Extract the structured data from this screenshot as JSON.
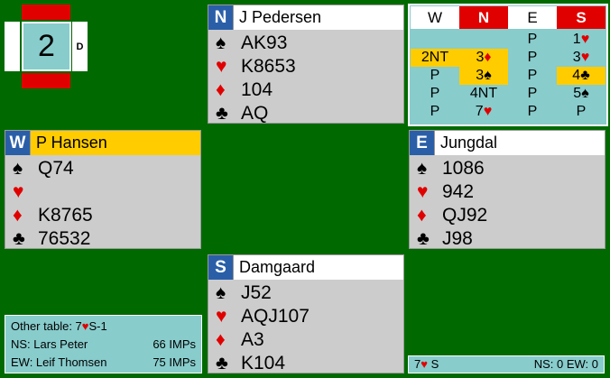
{
  "board": {
    "number": "2",
    "dealer_mark": "D",
    "vul_colors": {
      "ns": "#e00000",
      "ew": "#ffffff"
    }
  },
  "hands": {
    "north": {
      "seat": "N",
      "name": "J Pedersen",
      "spades": "AK93",
      "hearts": "K8653",
      "diamonds": "104",
      "clubs": "AQ"
    },
    "west": {
      "seat": "W",
      "name": "P Hansen",
      "spades": "Q74",
      "hearts": "",
      "diamonds": "K8765",
      "clubs": "76532"
    },
    "east": {
      "seat": "E",
      "name": "Jungdal",
      "spades": "1086",
      "hearts": "942",
      "diamonds": "QJ92",
      "clubs": "J98"
    },
    "south": {
      "seat": "S",
      "name": "Damgaard",
      "spades": "J52",
      "hearts": "AQJ107",
      "diamonds": "A3",
      "clubs": "K104"
    }
  },
  "auction": {
    "headers": [
      "W",
      "N",
      "E",
      "S"
    ],
    "rows": [
      [
        {
          "t": ""
        },
        {
          "t": ""
        },
        {
          "t": "P"
        },
        {
          "t": "1",
          "s": "♥"
        }
      ],
      [
        {
          "t": "2NT",
          "hl": true
        },
        {
          "t": "3",
          "s": "♦",
          "hl": true
        },
        {
          "t": "P"
        },
        {
          "t": "3",
          "s": "♥"
        }
      ],
      [
        {
          "t": "P"
        },
        {
          "t": "3",
          "s": "♠",
          "hl": true
        },
        {
          "t": "P"
        },
        {
          "t": "4",
          "s": "♣",
          "hl": true
        }
      ],
      [
        {
          "t": "P"
        },
        {
          "t": "4NT"
        },
        {
          "t": "P"
        },
        {
          "t": "5",
          "s": "♠"
        }
      ],
      [
        {
          "t": "P"
        },
        {
          "t": "7",
          "s": "♥"
        },
        {
          "t": "P"
        },
        {
          "t": "P"
        }
      ]
    ]
  },
  "other_table": {
    "label": "Other table: 7",
    "suit": "♥",
    "rest": "S-1",
    "ns_label": "NS: Lars Peter",
    "ns_imps": "66 IMPs",
    "ew_label": "EW: Leif Thomsen",
    "ew_imps": "75 IMPs"
  },
  "result": {
    "contract": "7",
    "suit": "♥",
    "declarer": "S",
    "score": "NS: 0 EW: 0"
  },
  "colors": {
    "background": "#006a00",
    "table_teal": "#88cccc",
    "highlight": "#ffcc00",
    "seat_blue": "#2a5fa8"
  }
}
